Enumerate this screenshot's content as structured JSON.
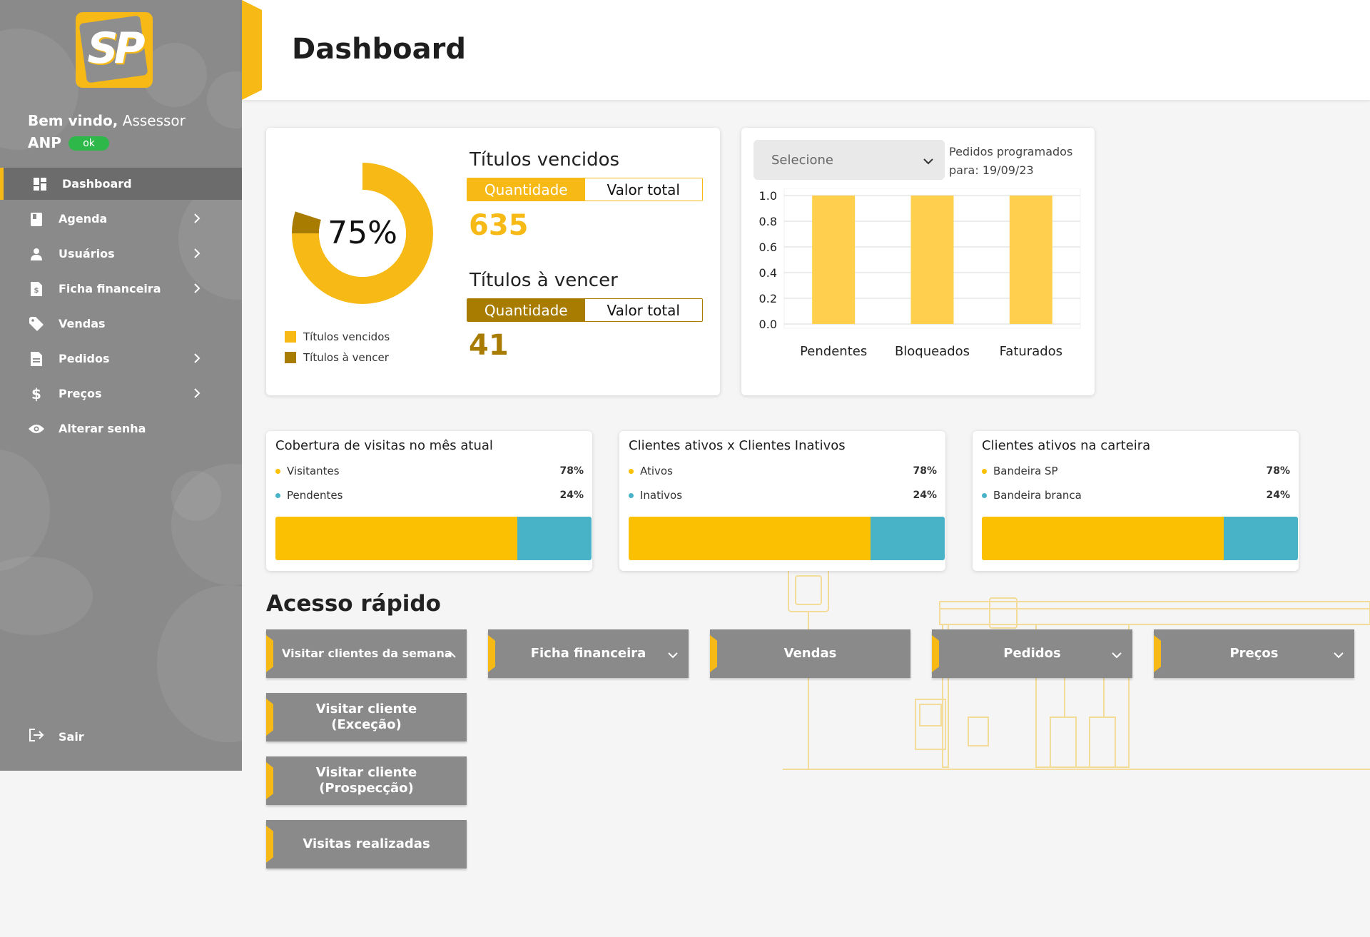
{
  "sidebar": {
    "logo_text": "SP",
    "welcome_prefix": "Bem vindo,",
    "user_name": "Assessor",
    "user_org": "ANP",
    "status_badge": "ok",
    "items": [
      {
        "label": "Dashboard",
        "icon": "dashboard-icon",
        "has_chevron": false,
        "active": true
      },
      {
        "label": "Agenda",
        "icon": "book-icon",
        "has_chevron": true
      },
      {
        "label": "Usuários",
        "icon": "user-icon",
        "has_chevron": true
      },
      {
        "label": "Ficha financeira",
        "icon": "invoice-icon",
        "has_chevron": true
      },
      {
        "label": "Vendas",
        "icon": "tag-icon",
        "has_chevron": false
      },
      {
        "label": "Pedidos",
        "icon": "document-icon",
        "has_chevron": true
      },
      {
        "label": "Preços",
        "icon": "dollar-icon",
        "has_chevron": true
      },
      {
        "label": "Alterar senha",
        "icon": "eye-icon",
        "has_chevron": false
      }
    ],
    "logout_label": "Sair"
  },
  "header": {
    "title": "Dashboard"
  },
  "summary": {
    "donut_center": "75%",
    "legend": [
      "Títulos vencidos",
      "Títulos à vencer"
    ],
    "vencidos": {
      "title": "Títulos vencidos",
      "tab_active": "Quantidade",
      "tab_inactive": "Valor total",
      "value": "635"
    },
    "a_vencer": {
      "title": "Títulos à vencer",
      "tab_active": "Quantidade",
      "tab_inactive": "Valor total",
      "value": "41"
    }
  },
  "orders": {
    "select_placeholder": "Selecione",
    "note_line1": "Pedidos programados",
    "note_line2": "para: 19/09/23"
  },
  "chart_data": [
    {
      "type": "pie",
      "categories": [
        "Títulos vencidos",
        "Títulos à vencer"
      ],
      "values": [
        75,
        5
      ],
      "center_label": "75%"
    },
    {
      "type": "bar",
      "categories": [
        "Pendentes",
        "Bloqueados",
        "Faturados"
      ],
      "values": [
        1.0,
        1.0,
        1.0
      ],
      "yticks": [
        "0.0",
        "0.2",
        "0.4",
        "0.6",
        "0.8",
        "1.0"
      ],
      "ylim": [
        0,
        1.0
      ],
      "grid": true
    }
  ],
  "stats": [
    {
      "title": "Cobertura de visitas no mês atual",
      "a_label": "Visitantes",
      "a_pct": "78%",
      "b_label": "Pendentes",
      "b_pct": "24%",
      "a_value": 78,
      "b_value": 24
    },
    {
      "title": "Clientes ativos x Clientes Inativos",
      "a_label": "Ativos",
      "a_pct": "78%",
      "b_label": "Inativos",
      "b_pct": "24%",
      "a_value": 78,
      "b_value": 24
    },
    {
      "title": "Clientes ativos na carteira",
      "a_label": "Bandeira SP",
      "a_pct": "78%",
      "b_label": "Bandeira branca",
      "b_pct": "24%",
      "a_value": 78,
      "b_value": 24
    }
  ],
  "quick_access": {
    "title": "Acesso rápido",
    "buttons": [
      {
        "label": "Visitar clientes da semana",
        "chevron": "up"
      },
      {
        "label": "Ficha financeira",
        "chevron": "down"
      },
      {
        "label": "Vendas",
        "chevron": ""
      },
      {
        "label": "Pedidos",
        "chevron": "down"
      },
      {
        "label": "Preços",
        "chevron": "down"
      }
    ],
    "submenu": [
      {
        "line1": "Visitar cliente",
        "line2": "(Exceção)"
      },
      {
        "line1": "Visitar cliente",
        "line2": "(Prospecção)"
      },
      {
        "line1": "Visitas realizadas",
        "line2": ""
      }
    ]
  },
  "colors": {
    "accent": "#f6b916",
    "accent_dark": "#a87c00",
    "stat_a": "#fbc002",
    "stat_b": "#48b3c7",
    "sidebar": "#8a8a8a",
    "bar": "#ffcf4d"
  }
}
